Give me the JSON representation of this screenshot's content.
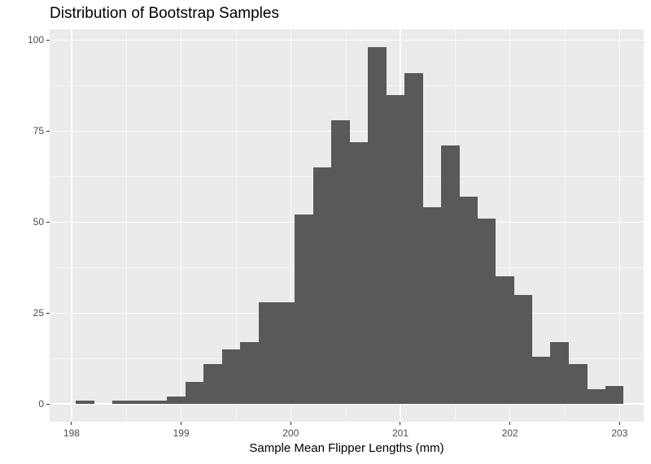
{
  "chart_data": {
    "type": "bar",
    "subtype": "histogram",
    "title": "Distribution of Bootstrap Samples",
    "xlabel": "Sample Mean Flipper Lengths (mm)",
    "ylabel": "",
    "bins": 30,
    "bin_start": 198.04,
    "bin_width": 0.1665,
    "counts": [
      1,
      0,
      1,
      1,
      1,
      2,
      6,
      11,
      15,
      17,
      28,
      28,
      52,
      65,
      78,
      72,
      98,
      85,
      91,
      54,
      71,
      57,
      51,
      35,
      30,
      13,
      17,
      11,
      4,
      5
    ],
    "x_ticks": [
      198,
      199,
      200,
      201,
      202,
      203
    ],
    "x_tick_labels": [
      "198",
      "199",
      "200",
      "201",
      "202",
      "203"
    ],
    "y_ticks": [
      0,
      25,
      50,
      75,
      100
    ],
    "y_tick_labels": [
      "0",
      "25",
      "50",
      "75",
      "100"
    ],
    "xlim": [
      197.8,
      203.22
    ],
    "ylim": [
      -4.9,
      103
    ],
    "grid": true,
    "legend": null,
    "bar_color": "#595959",
    "panel_background": "#ebebeb"
  }
}
